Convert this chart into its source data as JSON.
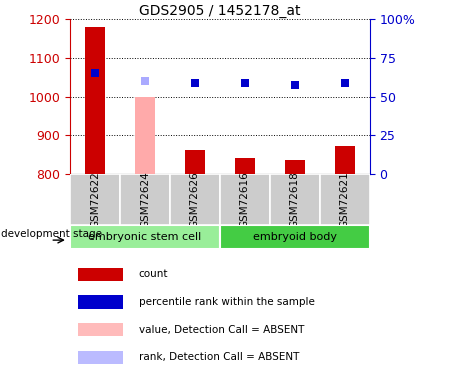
{
  "title": "GDS2905 / 1452178_at",
  "samples": [
    "GSM72622",
    "GSM72624",
    "GSM72626",
    "GSM72616",
    "GSM72618",
    "GSM72621"
  ],
  "bar_values": [
    1180,
    1000,
    862,
    843,
    838,
    872
  ],
  "bar_colors": [
    "#cc0000",
    "#ffaaaa",
    "#cc0000",
    "#cc0000",
    "#cc0000",
    "#cc0000"
  ],
  "rank_values": [
    1060,
    1040,
    1035,
    1035,
    1030,
    1035
  ],
  "rank_colors": [
    "#0000cc",
    "#aaaaff",
    "#0000cc",
    "#0000cc",
    "#0000cc",
    "#0000cc"
  ],
  "ylim_left": [
    800,
    1200
  ],
  "ylim_right": [
    0,
    100
  ],
  "yticks_left": [
    800,
    900,
    1000,
    1100,
    1200
  ],
  "yticks_right": [
    0,
    25,
    50,
    75,
    100
  ],
  "ytick_labels_right": [
    "0",
    "25",
    "50",
    "75",
    "100%"
  ],
  "group1_label": "embryonic stem cell",
  "group2_label": "embryoid body",
  "group1_color": "#99ee99",
  "group2_color": "#44cc44",
  "sample_box_color": "#cccccc",
  "dev_stage_label": "development stage",
  "legend_items": [
    {
      "label": "count",
      "color": "#cc0000"
    },
    {
      "label": "percentile rank within the sample",
      "color": "#0000cc"
    },
    {
      "label": "value, Detection Call = ABSENT",
      "color": "#ffbbbb"
    },
    {
      "label": "rank, Detection Call = ABSENT",
      "color": "#bbbbff"
    }
  ],
  "left_axis_color": "#cc0000",
  "right_axis_color": "#0000cc",
  "bar_width": 0.4,
  "marker_size": 6
}
